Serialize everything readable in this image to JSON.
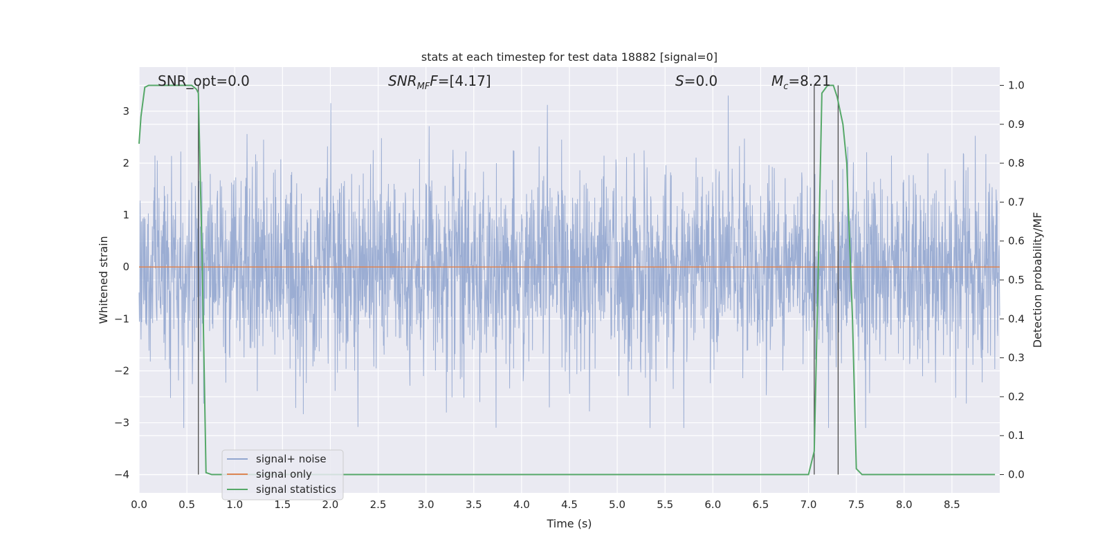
{
  "chart_data": {
    "type": "line",
    "title": "stats at each timestep for test data 18882 [signal=0]",
    "xlabel": "Time (s)",
    "ylabel": "Whitened strain",
    "y2label": "Detection probability/MF",
    "xlim": [
      0,
      9.0
    ],
    "ylim": [
      -4.35,
      3.85
    ],
    "y2lim": [
      -0.047,
      1.047
    ],
    "x_ticks": [
      "0.0",
      "0.5",
      "1.0",
      "1.5",
      "2.0",
      "2.5",
      "3.0",
      "3.5",
      "4.0",
      "4.5",
      "5.0",
      "5.5",
      "6.0",
      "6.5",
      "7.0",
      "7.5",
      "8.0",
      "8.5"
    ],
    "y_ticks": [
      "3",
      "2",
      "1",
      "0",
      "−1",
      "−2",
      "−3",
      "−4"
    ],
    "y2_ticks": [
      "1.0",
      "0.9",
      "0.8",
      "0.7",
      "0.6",
      "0.5",
      "0.4",
      "0.3",
      "0.2",
      "0.1",
      "0.0"
    ],
    "grid": true,
    "legend_position": "lower-left",
    "annotations": {
      "snr_opt": "SNR_opt=0.0",
      "snr_mf_main": "SNR",
      "snr_mf_sub": "MF",
      "snr_mf_rest": "=[4.17]",
      "s_italic": "S",
      "s_rest": "=0.0",
      "mc_main": "M",
      "mc_sub": "c",
      "mc_rest": "=8.21"
    },
    "series": [
      {
        "name": "signal+ noise",
        "axis": "left",
        "color": "#92a6cf",
        "description_range": [
          -3.1,
          3.5
        ],
        "noise_std": 0.95
      },
      {
        "name": "signal only",
        "axis": "left",
        "color": "#dd8452",
        "x": [
          0,
          9.0
        ],
        "y": [
          0,
          0
        ]
      },
      {
        "name": "signal statistics",
        "axis": "right",
        "color": "#55a868",
        "x": [
          0.0,
          0.02,
          0.06,
          0.1,
          0.2,
          0.3,
          0.4,
          0.5,
          0.55,
          0.6,
          0.62,
          0.66,
          0.7,
          0.76,
          1.0,
          2.0,
          3.0,
          4.0,
          5.0,
          6.0,
          6.5,
          6.9,
          7.0,
          7.06,
          7.1,
          7.14,
          7.2,
          7.26,
          7.3,
          7.36,
          7.4,
          7.46,
          7.5,
          7.56,
          7.6,
          8.0,
          8.5,
          8.95
        ],
        "y": [
          0.85,
          0.92,
          0.995,
          1.0,
          1.0,
          1.0,
          1.0,
          1.0,
          1.0,
          0.99,
          0.98,
          0.55,
          0.005,
          0.0,
          0.0,
          0.0,
          0.0,
          0.0,
          0.0,
          0.0,
          0.0,
          0.0,
          0.0,
          0.06,
          0.5,
          0.98,
          1.0,
          1.0,
          0.97,
          0.9,
          0.8,
          0.4,
          0.015,
          0.0,
          0.0,
          0.0,
          0.0,
          0.0
        ]
      }
    ],
    "vertical_markers_x": [
      0.62,
      7.06,
      7.31
    ],
    "colors": {
      "plot_bg": "#eaeaf2",
      "grid": "#ffffff",
      "marker": "#4d4d4d"
    }
  }
}
